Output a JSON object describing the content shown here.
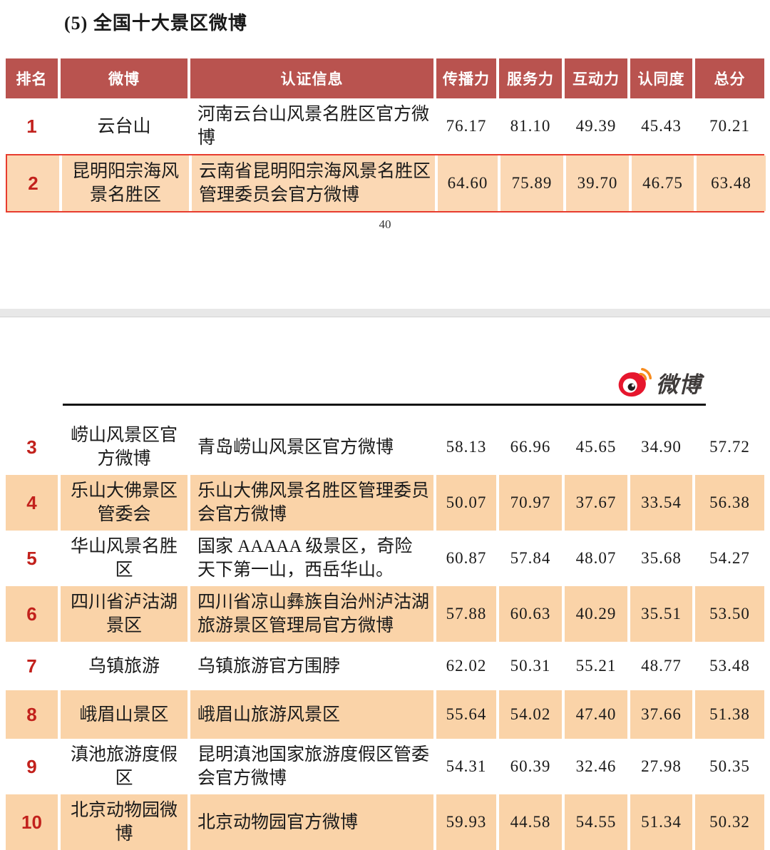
{
  "page1": {
    "title": "(5) 全国十大景区微博",
    "page_number": "40"
  },
  "page2": {
    "logo_text": "微博"
  },
  "table": {
    "headers": [
      "排名",
      "微博",
      "认证信息",
      "传播力",
      "服务力",
      "互动力",
      "认同度",
      "总分"
    ],
    "rows": [
      {
        "page": 1,
        "rank": "1",
        "weibo": "云台山",
        "cert": "河南云台山风景名胜区官方微博",
        "scores": [
          "76.17",
          "81.10",
          "49.39",
          "45.43",
          "70.21"
        ],
        "shaded": false,
        "highlight": false
      },
      {
        "page": 1,
        "rank": "2",
        "weibo": "昆明阳宗海风景名胜区",
        "cert": "云南省昆明阳宗海风景名胜区管理委员会官方微博",
        "scores": [
          "64.60",
          "75.89",
          "39.70",
          "46.75",
          "63.48"
        ],
        "shaded": true,
        "highlight": true
      },
      {
        "page": 2,
        "rank": "3",
        "weibo": "崂山风景区官方微博",
        "cert": "青岛崂山风景区官方微博",
        "scores": [
          "58.13",
          "66.96",
          "45.65",
          "34.90",
          "57.72"
        ],
        "shaded": false,
        "highlight": false
      },
      {
        "page": 2,
        "rank": "4",
        "weibo": "乐山大佛景区管委会",
        "cert": "乐山大佛风景名胜区管理委员会官方微博",
        "scores": [
          "50.07",
          "70.97",
          "37.67",
          "33.54",
          "56.38"
        ],
        "shaded": true,
        "highlight": false
      },
      {
        "page": 2,
        "rank": "5",
        "weibo": "华山风景名胜区",
        "cert": "国家 AAAAA 级景区，奇险天下第一山，西岳华山。",
        "scores": [
          "60.87",
          "57.84",
          "48.07",
          "35.68",
          "54.27"
        ],
        "shaded": false,
        "highlight": false
      },
      {
        "page": 2,
        "rank": "6",
        "weibo": "四川省泸沽湖景区",
        "cert": "四川省凉山彝族自治州泸沽湖旅游景区管理局官方微博",
        "scores": [
          "57.88",
          "60.63",
          "40.29",
          "35.51",
          "53.50"
        ],
        "shaded": true,
        "highlight": false
      },
      {
        "page": 2,
        "rank": "7",
        "weibo": "乌镇旅游",
        "cert": "乌镇旅游官方围脖",
        "scores": [
          "62.02",
          "50.31",
          "55.21",
          "48.77",
          "53.48"
        ],
        "shaded": false,
        "highlight": false
      },
      {
        "page": 2,
        "rank": "8",
        "weibo": "峨眉山景区",
        "cert": "峨眉山旅游风景区",
        "scores": [
          "55.64",
          "54.02",
          "47.40",
          "37.66",
          "51.38"
        ],
        "shaded": true,
        "highlight": false
      },
      {
        "page": 2,
        "rank": "9",
        "weibo": "滇池旅游度假区",
        "cert": "昆明滇池国家旅游度假区管委会官方微博",
        "scores": [
          "54.31",
          "60.39",
          "32.46",
          "27.98",
          "50.35"
        ],
        "shaded": false,
        "highlight": false
      },
      {
        "page": 2,
        "rank": "10",
        "weibo": "北京动物园微博",
        "cert": "北京动物园官方微博",
        "scores": [
          "59.93",
          "44.58",
          "54.55",
          "51.34",
          "50.32"
        ],
        "shaded": true,
        "highlight": false
      }
    ]
  },
  "colors": {
    "header_bg": "#b9534f",
    "shade_bg": "#fad3a8",
    "highlight_shade_bg": "#fbd8b4",
    "highlight_border": "#e73c2e",
    "rank_red": "#c2211c",
    "weibo_red": "#e6162d",
    "weibo_orange": "#f78c1e"
  }
}
